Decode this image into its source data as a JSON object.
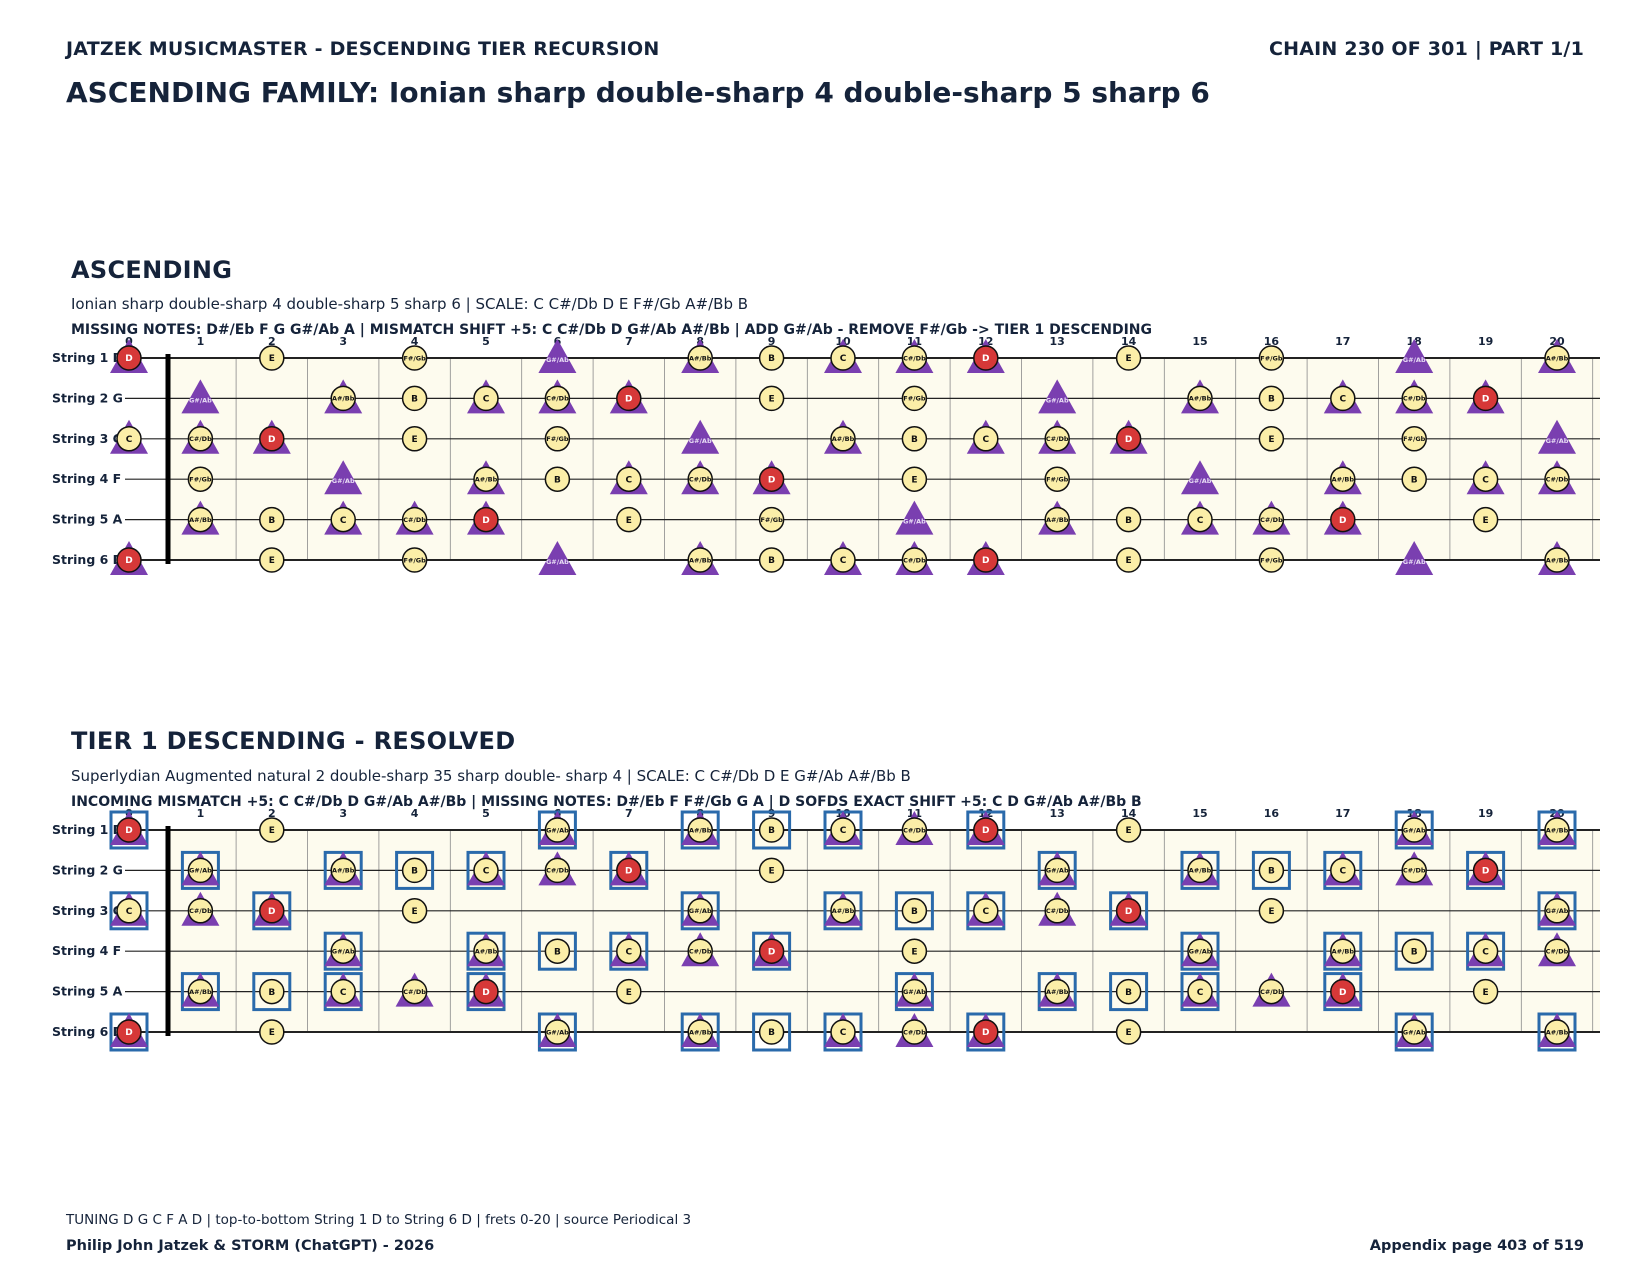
{
  "header": {
    "left": "JATZEK MUSICMASTER - DESCENDING TIER RECURSION",
    "right": "CHAIN 230 OF 301  |  PART 1/1",
    "family": "ASCENDING FAMILY: Ionian sharp double-sharp 4 double-sharp 5 sharp 6"
  },
  "colors": {
    "tonic": "#d63838",
    "note": "#fbeea8",
    "triangle": "#7a3fb0",
    "box": "#2a6aab",
    "board_bg": "#fdfbee"
  },
  "frets": [
    0,
    1,
    2,
    3,
    4,
    5,
    6,
    7,
    8,
    9,
    10,
    11,
    12,
    13,
    14,
    15,
    16,
    17,
    18,
    19,
    20
  ],
  "strings": [
    {
      "label": "String 1 D",
      "open": "D"
    },
    {
      "label": "String 2 G",
      "open": "G"
    },
    {
      "label": "String 3 C",
      "open": "C"
    },
    {
      "label": "String 4 F",
      "open": "F"
    },
    {
      "label": "String 5 A",
      "open": "A"
    },
    {
      "label": "String 6 D",
      "open": "D"
    }
  ],
  "note_names": [
    "C",
    "C#/Db",
    "D",
    "D#/Eb",
    "E",
    "F",
    "F#/Gb",
    "G",
    "G#/Ab",
    "A",
    "A#/Bb",
    "B"
  ],
  "sections": [
    {
      "title": "ASCENDING",
      "subtitle": "Ionian sharp double-sharp 4 double-sharp 5 sharp 6  |  SCALE: C C#/Db D E F#/Gb A#/Bb B",
      "info": "MISSING NOTES: D#/Eb F G G#/Ab A  |  MISMATCH SHIFT +5: C C#/Db D G#/Ab A#/Bb  |  ADD G#/Ab - REMOVE F#/Gb -> TIER 1 DESCENDING",
      "scale": [
        "C",
        "C#/Db",
        "D",
        "E",
        "F#/Gb",
        "A#/Bb",
        "B"
      ],
      "triangles": [
        "C",
        "C#/Db",
        "D",
        "G#/Ab",
        "A#/Bb"
      ],
      "tonic": "D",
      "boxes": []
    },
    {
      "title": "TIER 1 DESCENDING - RESOLVED",
      "subtitle": "Superlydian Augmented natural 2 double-sharp 35 sharp double- sharp 4  |  SCALE: C C#/Db D E G#/Ab A#/Bb B",
      "info": "INCOMING MISMATCH +5: C C#/Db D G#/Ab A#/Bb  |  MISSING NOTES: D#/Eb F F#/Gb G A  |  D SOFDS EXACT SHIFT +5: C D G#/Ab A#/Bb B",
      "scale": [
        "C",
        "C#/Db",
        "D",
        "E",
        "G#/Ab",
        "A#/Bb",
        "B"
      ],
      "triangles": [
        "C",
        "C#/Db",
        "D",
        "G#/Ab",
        "A#/Bb"
      ],
      "tonic": "D",
      "boxes": [
        "C",
        "D",
        "G#/Ab",
        "A#/Bb",
        "B"
      ]
    }
  ],
  "footer": {
    "line": "TUNING D G C F A D | top-to-bottom String 1 D to String 6 D | frets 0-20 | source Periodical 3",
    "author": "Philip John Jatzek & STORM (ChatGPT) - 2026",
    "page": "Appendix page 403 of 519"
  }
}
